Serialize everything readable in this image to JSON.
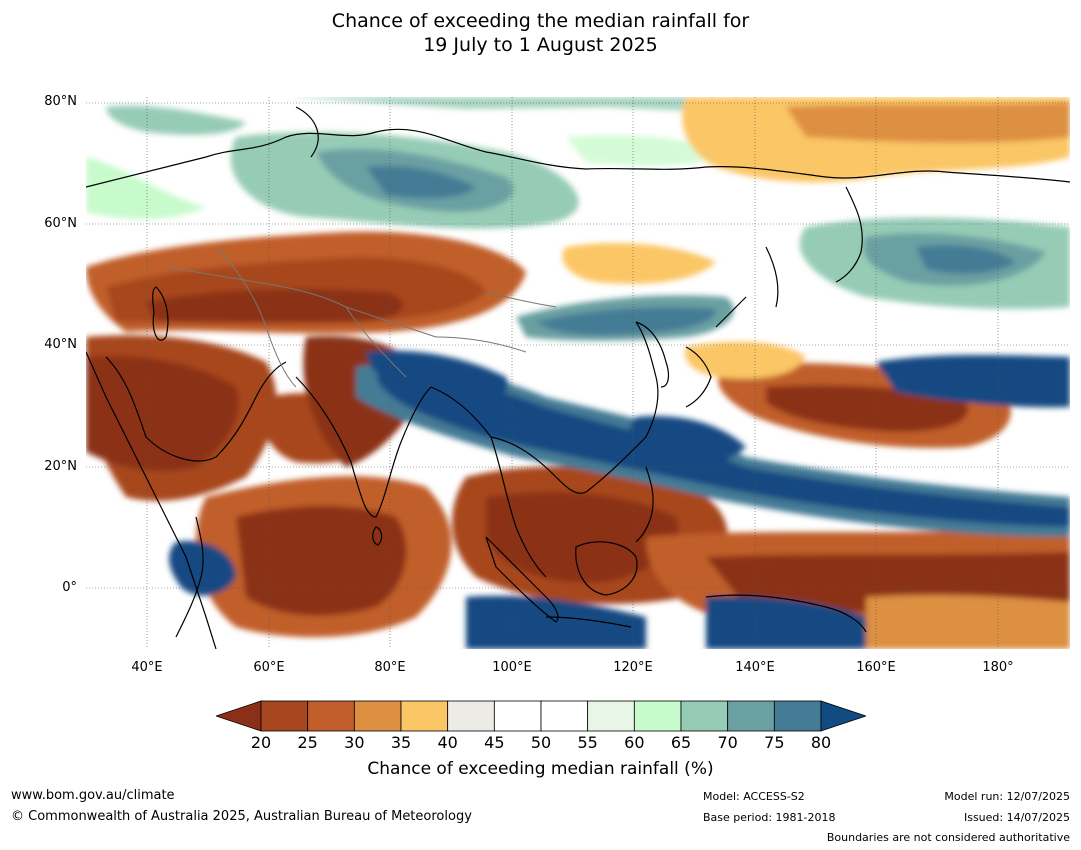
{
  "title_line1": "Chance of exceeding the median rainfall for",
  "title_line2": "19 July to 1 August 2025",
  "map": {
    "lon_range": [
      30,
      192
    ],
    "lat_range": [
      -10,
      80
    ],
    "lat_labels": [
      "80°N",
      "60°N",
      "40°N",
      "20°N",
      "0°"
    ],
    "lon_labels": [
      "40°E",
      "60°E",
      "80°E",
      "100°E",
      "120°E",
      "140°E",
      "160°E",
      "180°"
    ],
    "gridlines": true
  },
  "colorbar": {
    "ticks": [
      "20",
      "25",
      "30",
      "35",
      "40",
      "45",
      "50",
      "55",
      "60",
      "65",
      "70",
      "75",
      "80"
    ],
    "under_color": "#8b3018",
    "over_color": "#124a82",
    "bin_colors": [
      "#a8471f",
      "#c15e2c",
      "#dd8f42",
      "#fbc665",
      "#ecebe6",
      "#ffffff",
      "#ffffff",
      "#e8f6e8",
      "#c8fbcc",
      "#96ccb6",
      "#6aa0a2",
      "#447b95"
    ],
    "title": "Chance of exceeding median rainfall (%)"
  },
  "footer": {
    "url": "www.bom.gov.au/climate",
    "copyright": "© Commonwealth of Australia 2025, Australian Bureau of Meteorology",
    "model": "Model: ACCESS-S2",
    "base_period": "Base period: 1981-2018",
    "model_run": "Model run: 12/07/2025",
    "issued": "Issued: 14/07/2025",
    "disclaimer": "Boundaries are not considered authoritative"
  }
}
